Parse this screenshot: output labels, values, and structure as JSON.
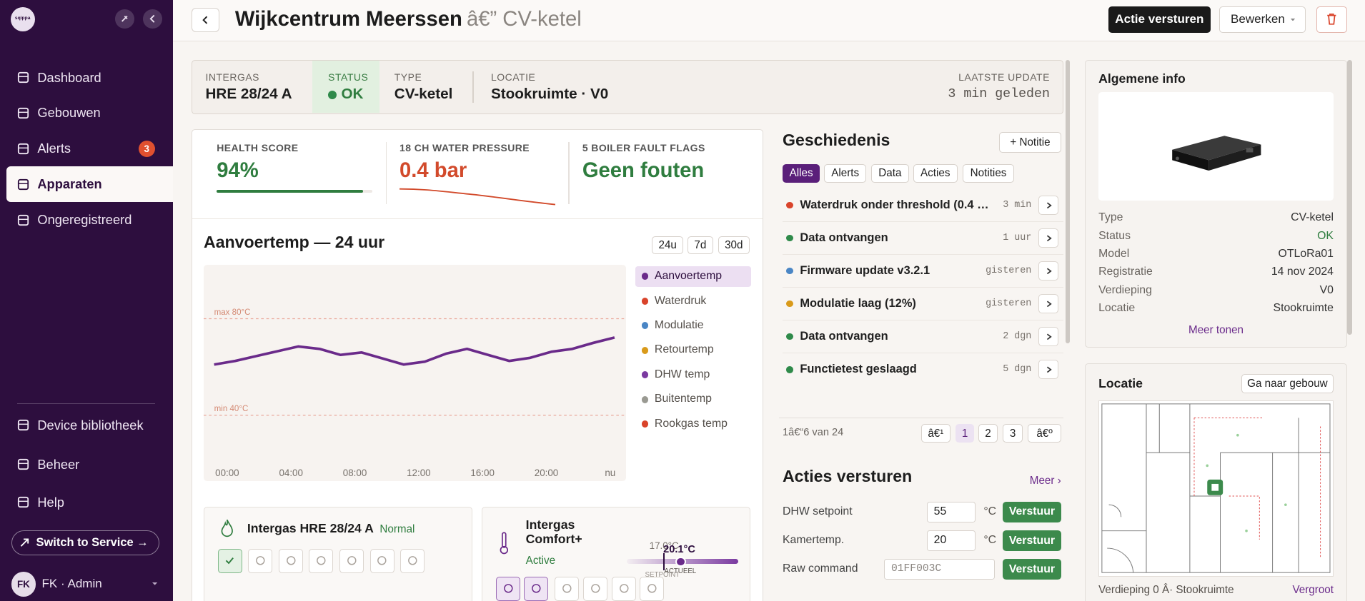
{
  "sidebar": {
    "brand": "sqippa",
    "nav": [
      "Dashboard",
      "Gebouwen",
      "Alerts",
      "Apparaten",
      "Ongeregistreerd"
    ],
    "active": "Apparaten",
    "alerts_badge": 3,
    "bottom_nav": [
      "Device bibliotheek",
      "Beheer",
      "Help"
    ],
    "switch_button": "Switch to Service →",
    "user_initials": "FK",
    "user_name": "FK · Admin"
  },
  "header": {
    "title": "Wijkcentrum Meerssen",
    "subtitle": "â€” CV-ketel",
    "primary_button": "Actie versturen",
    "edit_button": "Bewerken"
  },
  "summary": {
    "items": [
      {
        "label": "INTERGAS",
        "value": "HRE 28/24 A"
      },
      {
        "label": "STATUS",
        "value": "OK"
      },
      {
        "label": "TYPE",
        "value": "CV-ketel"
      },
      {
        "label": "LOCATIE",
        "value": "Stookruimte · V0"
      }
    ],
    "last_update": {
      "label": "LAATSTE UPDATE",
      "value": "3 min geleden"
    }
  },
  "metrics": [
    {
      "label": "HEALTH SCORE",
      "value": 94,
      "value_label": "94%"
    },
    {
      "label": "18 CH WATER PRESSURE",
      "value": "0.4 bar"
    },
    {
      "label": "5 BOILER FAULT FLAGS",
      "value": "Geen fouten"
    }
  ],
  "trend": {
    "type": "line",
    "title": "Aanvoertemp — 24 uur",
    "ranges": [
      "24u",
      "7d",
      "30d"
    ],
    "legend": [
      {
        "name": "Aanvoertemp",
        "color": "#6a2a8a"
      },
      {
        "name": "Waterdruk",
        "color": "#d9442b"
      },
      {
        "name": "Modulatie",
        "color": "#4a86c5"
      },
      {
        "name": "Retourtemp",
        "color": "#d99a1a"
      },
      {
        "name": "DHW temp",
        "color": "#7b3aa0"
      },
      {
        "name": "Buitentemp",
        "color": "#9a9a92"
      },
      {
        "name": "Rookgas temp",
        "color": "#d9442b"
      }
    ],
    "active_series": "Aanvoertemp",
    "x_labels": [
      "00:00",
      "04:00",
      "08:00",
      "12:00",
      "16:00",
      "20:00",
      "nu"
    ],
    "values": [
      61,
      62.5,
      64.5,
      66.5,
      68.5,
      67.5,
      65,
      66,
      63.5,
      61,
      62.2,
      65.5,
      67.5,
      65,
      62.5,
      63.8,
      66.3,
      67.5,
      70,
      72.2
    ],
    "ylim": [
      20,
      100
    ],
    "thresholds": [
      {
        "label": "max 80°C",
        "value": 80
      },
      {
        "label": "min 40°C",
        "value": 40
      }
    ]
  },
  "devices": [
    {
      "name": "Intergas HRE 28/24 A",
      "state": "Normal"
    },
    {
      "name": "Intergas Comfort+",
      "state": "Active",
      "setpoint": "17.0°C",
      "current": "20.1°C",
      "current_label": "ACTUEEL",
      "setpoint_label": "SETPOINT"
    }
  ],
  "history": {
    "title": "Geschiedenis",
    "add_note": "+ Notitie",
    "tabs": [
      "Alles",
      "Alerts",
      "Data",
      "Acties",
      "Notities"
    ],
    "active_tab": "Alles",
    "items": [
      {
        "text": "Waterdruk onder threshold (0.4 bar ...",
        "time": "3 min",
        "color": "#d9442b"
      },
      {
        "text": "Data ontvangen",
        "time": "1 uur",
        "color": "#2f8a4a"
      },
      {
        "text": "Firmware update v3.2.1",
        "time": "gisteren",
        "color": "#4a86c5"
      },
      {
        "text": "Modulatie laag (12%)",
        "time": "gisteren",
        "color": "#d99a1a"
      },
      {
        "text": "Data ontvangen",
        "time": "2 dgn",
        "color": "#2f8a4a"
      },
      {
        "text": "Functietest geslaagd",
        "time": "5 dgn",
        "color": "#2f8a4a"
      }
    ],
    "pagination": "1â€“6 van 24",
    "pages": [
      "â€¹",
      "1",
      "2",
      "3",
      "â€º"
    ],
    "current_page": "1"
  },
  "commands": {
    "title": "Acties versturen",
    "more": "Meer ›",
    "rows": [
      {
        "label": "DHW setpoint",
        "value": "55",
        "unit": "°C",
        "button": "Verstuur"
      },
      {
        "label": "Kamertemp.",
        "value": "20",
        "unit": "°C",
        "button": "Verstuur"
      },
      {
        "label": "Raw command",
        "placeholder": "01FF003C",
        "button": "Verstuur"
      }
    ]
  },
  "info": {
    "title": "Algemene info",
    "rows": [
      [
        "Type",
        "CV-ketel"
      ],
      [
        "Status",
        "OK"
      ],
      [
        "Model",
        "OTLoRa01"
      ],
      [
        "Registratie",
        "14 nov 2024"
      ],
      [
        "Verdieping",
        "V0"
      ],
      [
        "Locatie",
        "Stookruimte"
      ]
    ],
    "more": "Meer tonen"
  },
  "location": {
    "title": "Locatie",
    "button": "Ga naar gebouw",
    "caption": "Verdieping 0 Â· Stookruimte",
    "zoom": "Vergroot"
  }
}
